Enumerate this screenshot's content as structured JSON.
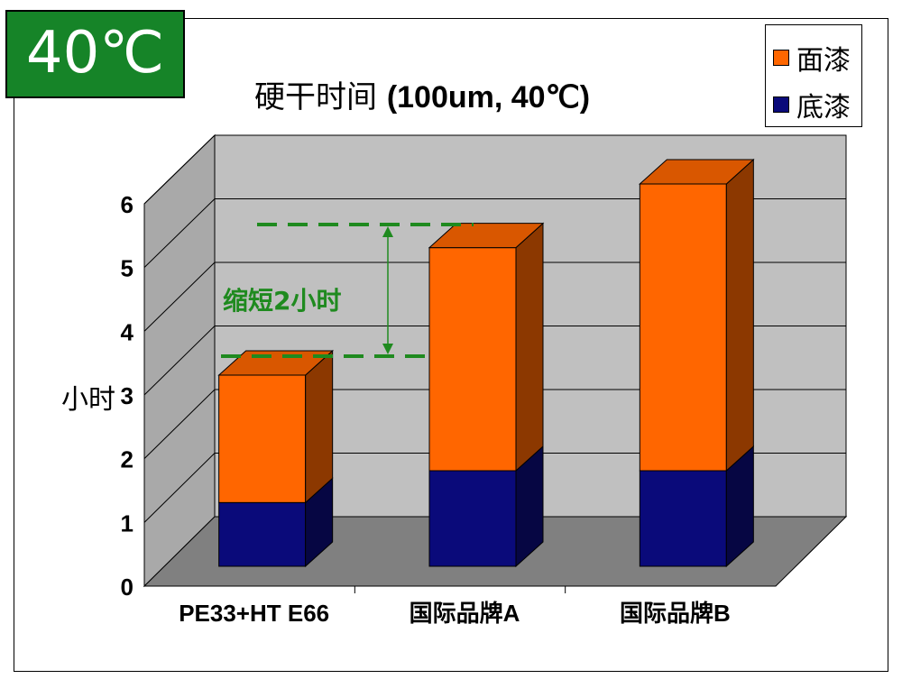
{
  "badge": {
    "text": "40℃"
  },
  "title": {
    "main": "硬干时间",
    "sub": "(100um, 40℃)"
  },
  "annotation": {
    "text": "缩短2小时"
  },
  "chart_data": {
    "type": "bar",
    "stacked": true,
    "three_d": true,
    "categories": [
      "PE33+HT E66",
      "国际品牌A",
      "国际品牌B"
    ],
    "series": [
      {
        "name": "底漆",
        "values": [
          1,
          1.5,
          1.5
        ],
        "color": "#0A0A7A"
      },
      {
        "name": "面漆",
        "values": [
          2,
          3.5,
          4.5
        ],
        "color": "#FF6600"
      }
    ],
    "ylabel": "小时",
    "ylim": [
      0,
      6
    ],
    "yticks": [
      "0",
      "1",
      "2",
      "3",
      "4",
      "5",
      "6"
    ],
    "grid": true,
    "legend_position": "top-right",
    "colors": {
      "floor": "#808080",
      "back_wall": "#C0C0C0",
      "side_wall": "#A9A9A9",
      "annotation": "#1F8A1F"
    }
  }
}
